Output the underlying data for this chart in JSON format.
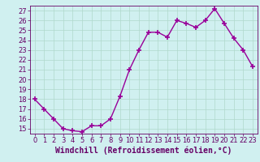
{
  "x": [
    0,
    1,
    2,
    3,
    4,
    5,
    6,
    7,
    8,
    9,
    10,
    11,
    12,
    13,
    14,
    15,
    16,
    17,
    18,
    19,
    20,
    21,
    22,
    23
  ],
  "y": [
    18,
    17,
    16,
    15,
    14.8,
    14.7,
    15.3,
    15.3,
    16,
    18.3,
    21,
    23,
    24.8,
    24.8,
    24.3,
    26,
    25.7,
    25.3,
    26,
    27.2,
    25.7,
    24.2,
    23,
    21.3
  ],
  "line_color": "#990099",
  "marker": "+",
  "marker_color": "#990099",
  "bg_color": "#d0f0f0",
  "grid_color": "#b0d8cc",
  "xlabel": "Windchill (Refroidissement éolien,°C)",
  "ylim": [
    14.5,
    27.5
  ],
  "yticks": [
    15,
    16,
    17,
    18,
    19,
    20,
    21,
    22,
    23,
    24,
    25,
    26,
    27
  ],
  "xlim": [
    -0.5,
    23.5
  ],
  "xticks": [
    0,
    1,
    2,
    3,
    4,
    5,
    6,
    7,
    8,
    9,
    10,
    11,
    12,
    13,
    14,
    15,
    16,
    17,
    18,
    19,
    20,
    21,
    22,
    23
  ],
  "xlabel_fontsize": 7,
  "tick_fontsize": 6,
  "linewidth": 1.0,
  "markersize": 4.5
}
